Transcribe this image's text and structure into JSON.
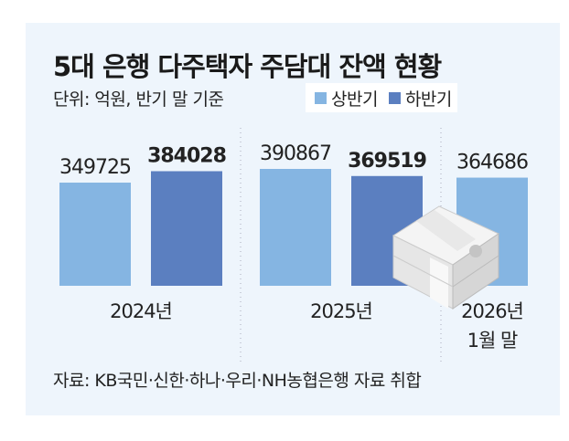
{
  "chart_data": {
    "type": "bar",
    "title": "5대 은행 다주택자 주담대 잔액 현황",
    "subtitle": "단위: 억원, 반기 말 기준",
    "legend": [
      {
        "name": "상반기",
        "color": "#85b5e2"
      },
      {
        "name": "하반기",
        "color": "#5b7fc0"
      }
    ],
    "legend_placement": "top-right",
    "bars": [
      {
        "group": "2024년",
        "series": "상반기",
        "value": 349725,
        "label": "349725",
        "bold": false
      },
      {
        "group": "2024년",
        "series": "하반기",
        "value": 384028,
        "label": "384028",
        "bold": true
      },
      {
        "group": "2025년",
        "series": "상반기",
        "value": 390867,
        "label": "390867",
        "bold": false
      },
      {
        "group": "2025년",
        "series": "하반기",
        "value": 369519,
        "label": "369519",
        "bold": true
      },
      {
        "group": "2026년 1월 말",
        "series": "상반기",
        "value": 364686,
        "label": "364686",
        "bold": false
      }
    ],
    "categories": [
      {
        "line1": "2024년",
        "line2": ""
      },
      {
        "line1": "2025년",
        "line2": ""
      },
      {
        "line1": "2026년",
        "line2": "1월 말"
      }
    ],
    "source": "자료: KB국민·신한·하나·우리·NH농협은행 자료 취합"
  }
}
